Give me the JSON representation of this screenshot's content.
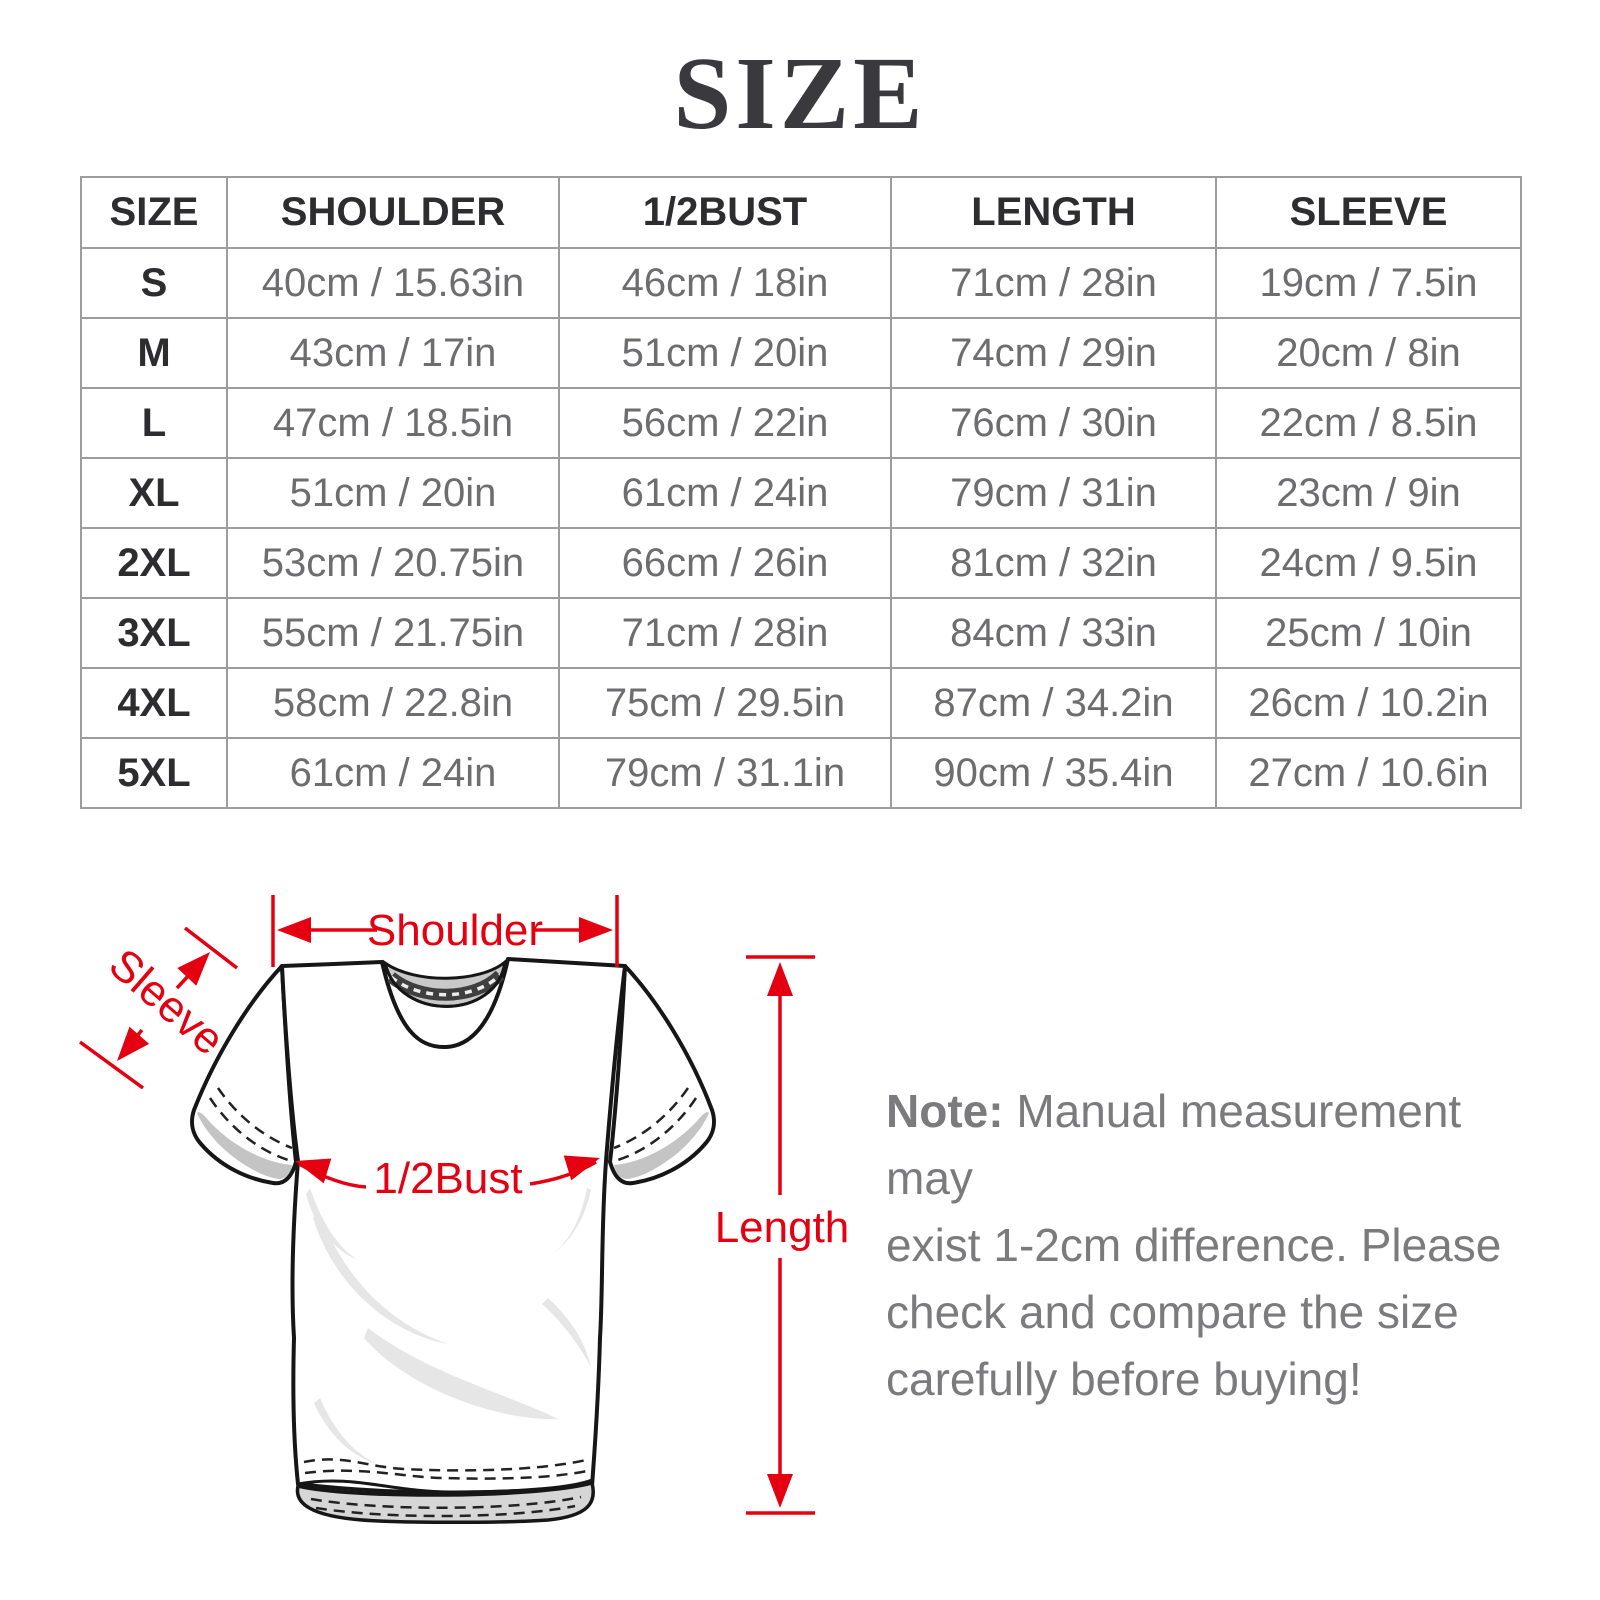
{
  "title": "SIZE",
  "table": {
    "headers": [
      "SIZE",
      "SHOULDER",
      "1/2BUST",
      "LENGTH",
      "SLEEVE"
    ],
    "rows": [
      [
        "S",
        "40cm / 15.63in",
        "46cm / 18in",
        "71cm / 28in",
        "19cm / 7.5in"
      ],
      [
        "M",
        "43cm / 17in",
        "51cm / 20in",
        "74cm / 29in",
        "20cm / 8in"
      ],
      [
        "L",
        "47cm / 18.5in",
        "56cm / 22in",
        "76cm / 30in",
        "22cm / 8.5in"
      ],
      [
        "XL",
        "51cm / 20in",
        "61cm / 24in",
        "79cm / 31in",
        "23cm / 9in"
      ],
      [
        "2XL",
        "53cm / 20.75in",
        "66cm / 26in",
        "81cm / 32in",
        "24cm / 9.5in"
      ],
      [
        "3XL",
        "55cm / 21.75in",
        "71cm / 28in",
        "84cm / 33in",
        "25cm / 10in"
      ],
      [
        "4XL",
        "58cm / 22.8in",
        "75cm / 29.5in",
        "87cm / 34.2in",
        "26cm / 10.2in"
      ],
      [
        "5XL",
        "61cm / 24in",
        "79cm / 31.1in",
        "90cm / 35.4in",
        "27cm / 10.6in"
      ]
    ]
  },
  "diagram": {
    "labels": {
      "shoulder": "Shoulder",
      "sleeve": "Sleeve",
      "bust": "1/2Bust",
      "length": "Length"
    }
  },
  "note": {
    "prefix": "Note:",
    "text": " Manual measurement may\nexist 1-2cm difference. Please\ncheck and compare the size\ncarefully before buying!"
  },
  "colors": {
    "accent_red": "#e50011",
    "title": "#3a3a3e",
    "header_text": "#2d2d2f",
    "cell_text": "#6d6d6f",
    "table_border": "#9c9c9c",
    "note_text": "#7b7b7d"
  }
}
